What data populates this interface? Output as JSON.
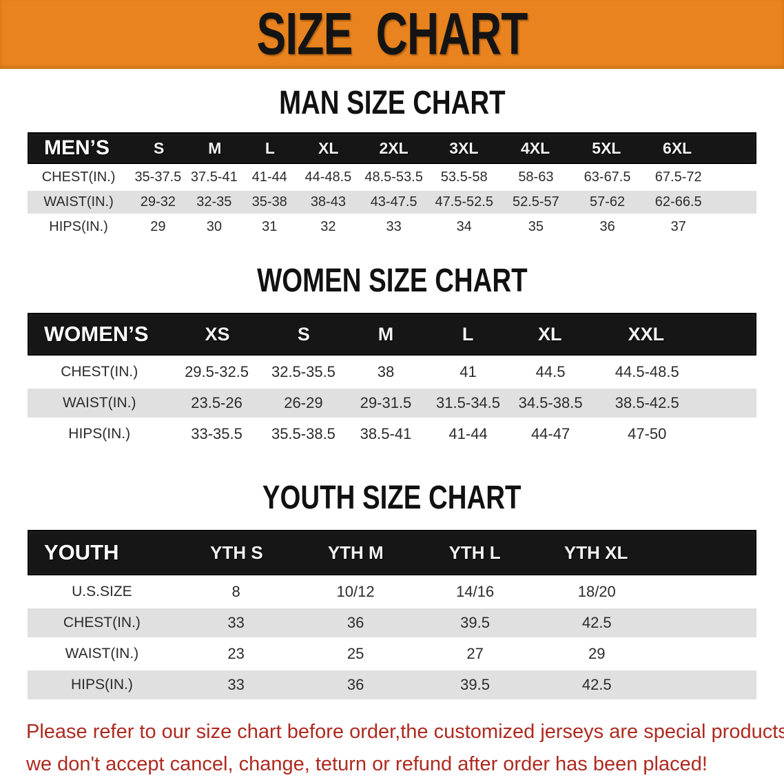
{
  "banner": {
    "title": "SIZE CHART",
    "bg_color": "#E8831F",
    "text_color": "#141414"
  },
  "sections": {
    "men": {
      "title": "MAN SIZE CHART",
      "header_label": "MEN’S",
      "columns": [
        "S",
        "M",
        "L",
        "XL",
        "2XL",
        "3XL",
        "4XL",
        "5XL",
        "6XL"
      ],
      "rows": [
        {
          "label": "CHEST(IN.)",
          "values": [
            "35-37.5",
            "37.5-41",
            "41-44",
            "44-48.5",
            "48.5-53.5",
            "53.5-58",
            "58-63",
            "63-67.5",
            "67.5-72"
          ]
        },
        {
          "label": "WAIST(IN.)",
          "values": [
            "29-32",
            "32-35",
            "35-38",
            "38-43",
            "43-47.5",
            "47.5-52.5",
            "52.5-57",
            "57-62",
            "62-66.5"
          ]
        },
        {
          "label": "HIPS(IN.)",
          "values": [
            "29",
            "30",
            "31",
            "32",
            "33",
            "34",
            "35",
            "36",
            "37"
          ]
        }
      ]
    },
    "women": {
      "title": "WOMEN SIZE CHART",
      "header_label": "WOMEN’S",
      "columns": [
        "XS",
        "S",
        "M",
        "L",
        "XL",
        "XXL"
      ],
      "rows": [
        {
          "label": "CHEST(IN.)",
          "values": [
            "29.5-32.5",
            "32.5-35.5",
            "38",
            "41",
            "44.5",
            "44.5-48.5"
          ]
        },
        {
          "label": "WAIST(IN.)",
          "values": [
            "23.5-26",
            "26-29",
            "29-31.5",
            "31.5-34.5",
            "34.5-38.5",
            "38.5-42.5"
          ]
        },
        {
          "label": "HIPS(IN.)",
          "values": [
            "33-35.5",
            "35.5-38.5",
            "38.5-41",
            "41-44",
            "44-47",
            "47-50"
          ]
        }
      ]
    },
    "youth": {
      "title": "YOUTH SIZE CHART",
      "header_label": "YOUTH",
      "columns": [
        "YTH S",
        "YTH M",
        "YTH L",
        "YTH XL"
      ],
      "rows": [
        {
          "label": "U.S.SIZE",
          "values": [
            "8",
            "10/12",
            "14/16",
            "18/20"
          ]
        },
        {
          "label": "CHEST(IN.)",
          "values": [
            "33",
            "36",
            "39.5",
            "42.5"
          ]
        },
        {
          "label": "WAIST(IN.)",
          "values": [
            "23",
            "25",
            "27",
            "29"
          ]
        },
        {
          "label": "HIPS(IN.)",
          "values": [
            "33",
            "36",
            "39.5",
            "42.5"
          ]
        }
      ]
    }
  },
  "footer": {
    "line1": "Please refer to our size chart before order,the customized jerseys are special products,",
    "line2": "we don't accept cancel, change, teturn or refund after order has been placed!",
    "text_color": "#AE2A20"
  },
  "colors": {
    "banner_orange": "#E8831F",
    "header_bar_black": "#161616",
    "row_gray": "#E0E0E0",
    "row_white": "#FFFFFF",
    "notice_red": "#AE2A20"
  }
}
